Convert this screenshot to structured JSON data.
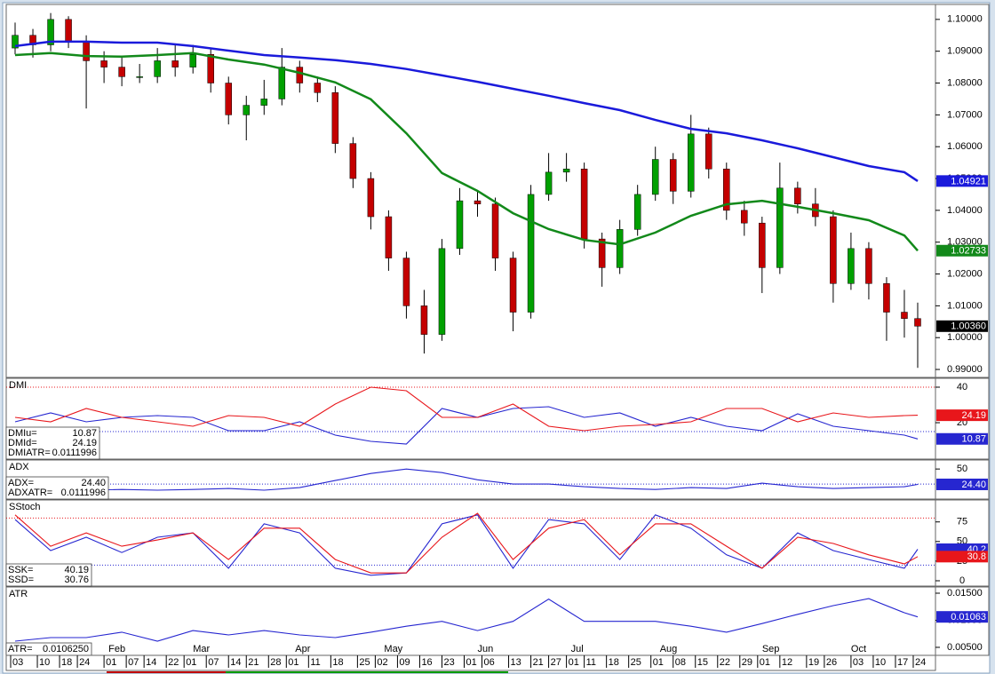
{
  "chart_data": [
    {
      "type": "candlestick",
      "xlim": [
        -2,
        207
      ],
      "ylim": [
        0.9875,
        1.1047
      ],
      "yticks": [
        {
          "value": 0.99,
          "label": "0.99000"
        },
        {
          "value": 1.0,
          "label": "1.00000"
        },
        {
          "value": 1.01,
          "label": "1.01000"
        },
        {
          "value": 1.02,
          "label": "1.02000"
        },
        {
          "value": 1.03,
          "label": "1.03000"
        },
        {
          "value": 1.04,
          "label": "1.04000"
        },
        {
          "value": 1.05,
          "label": "1.05000"
        },
        {
          "value": 1.06,
          "label": "1.06000"
        },
        {
          "value": 1.07,
          "label": "1.07000"
        },
        {
          "value": 1.08,
          "label": "1.08000"
        },
        {
          "value": 1.09,
          "label": "1.09000"
        },
        {
          "value": 1.1,
          "label": "1.10000"
        }
      ],
      "candles": {
        "up_color": "#00a000",
        "down_color": "#c40000",
        "x": [
          0,
          4,
          8,
          12,
          16,
          20,
          24,
          28,
          32,
          36,
          40,
          44,
          48,
          52,
          56,
          60,
          64,
          68,
          72,
          76,
          80,
          84,
          88,
          92,
          96,
          100,
          104,
          108,
          112,
          116,
          120,
          124,
          128,
          132,
          136,
          140,
          144,
          148,
          152,
          156,
          160,
          164,
          168,
          172,
          176,
          180,
          184,
          188,
          192,
          196,
          200,
          203
        ],
        "open": [
          1.091,
          1.095,
          1.092,
          1.1,
          1.093,
          1.087,
          1.085,
          1.082,
          1.082,
          1.087,
          1.085,
          1.089,
          1.08,
          1.07,
          1.073,
          1.075,
          1.085,
          1.08,
          1.077,
          1.061,
          1.05,
          1.038,
          1.025,
          1.01,
          1.001,
          1.028,
          1.043,
          1.042,
          1.025,
          1.008,
          1.045,
          1.052,
          1.053,
          1.031,
          1.022,
          1.034,
          1.045,
          1.056,
          1.046,
          1.064,
          1.053,
          1.04,
          1.036,
          1.022,
          1.047,
          1.042,
          1.038,
          1.017,
          1.028,
          1.017,
          1.008,
          1.006
        ],
        "high": [
          1.099,
          1.097,
          1.102,
          1.101,
          1.095,
          1.09,
          1.088,
          1.086,
          1.091,
          1.092,
          1.092,
          1.091,
          1.082,
          1.076,
          1.081,
          1.091,
          1.087,
          1.082,
          1.079,
          1.063,
          1.052,
          1.04,
          1.027,
          1.015,
          1.031,
          1.047,
          1.046,
          1.044,
          1.027,
          1.048,
          1.058,
          1.058,
          1.055,
          1.033,
          1.037,
          1.048,
          1.06,
          1.058,
          1.07,
          1.066,
          1.055,
          1.043,
          1.038,
          1.055,
          1.049,
          1.047,
          1.04,
          1.033,
          1.03,
          1.019,
          1.015,
          1.011
        ],
        "low": [
          1.089,
          1.088,
          1.09,
          1.091,
          1.072,
          1.08,
          1.079,
          1.08,
          1.08,
          1.082,
          1.083,
          1.077,
          1.067,
          1.062,
          1.07,
          1.073,
          1.077,
          1.074,
          1.058,
          1.047,
          1.034,
          1.021,
          1.006,
          0.995,
          0.999,
          1.026,
          1.038,
          1.021,
          1.002,
          1.006,
          1.043,
          1.049,
          1.028,
          1.016,
          1.02,
          1.032,
          1.043,
          1.042,
          1.044,
          1.05,
          1.037,
          1.032,
          1.014,
          1.02,
          1.039,
          1.035,
          1.011,
          1.015,
          1.012,
          0.999,
          1.0,
          0.9905
        ],
        "close": [
          1.095,
          1.092,
          1.1,
          1.093,
          1.087,
          1.085,
          1.082,
          1.082,
          1.087,
          1.085,
          1.089,
          1.08,
          1.07,
          1.073,
          1.075,
          1.085,
          1.08,
          1.077,
          1.061,
          1.05,
          1.038,
          1.025,
          1.01,
          1.001,
          1.028,
          1.043,
          1.042,
          1.025,
          1.008,
          1.045,
          1.052,
          1.053,
          1.031,
          1.022,
          1.034,
          1.045,
          1.056,
          1.046,
          1.064,
          1.053,
          1.04,
          1.036,
          1.022,
          1.047,
          1.042,
          1.038,
          1.017,
          1.028,
          1.017,
          1.008,
          1.006,
          1.0036
        ],
        "last_label": "1.00360",
        "last_color": "#000000"
      },
      "series": [
        {
          "color": "#1a1adb",
          "last_label": "1.04921",
          "x": [
            0,
            8,
            16,
            24,
            32,
            40,
            48,
            56,
            64,
            72,
            80,
            88,
            96,
            104,
            112,
            120,
            128,
            136,
            144,
            152,
            160,
            168,
            176,
            184,
            192,
            200,
            203
          ],
          "values": [
            1.0916,
            1.093,
            1.093,
            1.0927,
            1.0927,
            1.0916,
            1.0902,
            1.0888,
            1.088,
            1.0872,
            1.086,
            1.0844,
            1.0824,
            1.0804,
            1.0782,
            1.076,
            1.0737,
            1.0715,
            1.0684,
            1.0656,
            1.0642,
            1.062,
            1.0595,
            1.0567,
            1.0539,
            1.052,
            1.04921
          ]
        },
        {
          "color": "#12891a",
          "last_label": "1.02733",
          "x": [
            0,
            8,
            16,
            24,
            32,
            40,
            48,
            56,
            64,
            72,
            80,
            88,
            96,
            104,
            112,
            120,
            128,
            136,
            144,
            152,
            160,
            168,
            176,
            184,
            192,
            200,
            203
          ],
          "values": [
            1.0888,
            1.0894,
            1.0885,
            1.0883,
            1.0888,
            1.0894,
            1.0874,
            1.0858,
            1.0832,
            1.0802,
            1.0749,
            1.0642,
            1.0517,
            1.0461,
            1.0391,
            1.0341,
            1.0307,
            1.0293,
            1.033,
            1.0383,
            1.0419,
            1.043,
            1.0411,
            1.0391,
            1.0369,
            1.0321,
            1.02733
          ]
        }
      ]
    },
    {
      "type": "line",
      "title": "DMI",
      "xlim": [
        -2,
        207
      ],
      "ylim": [
        -0.5,
        45
      ],
      "yticks": [
        20,
        40
      ],
      "ref_lines": [
        {
          "value": 40,
          "color": "#e8161b"
        },
        {
          "value": 15,
          "color": "#2626d0"
        }
      ],
      "series": [
        {
          "name": "DMIu=",
          "color": "#2626d0",
          "x": [
            0,
            8,
            16,
            24,
            32,
            40,
            48,
            56,
            64,
            72,
            80,
            88,
            96,
            104,
            112,
            120,
            128,
            136,
            144,
            152,
            160,
            168,
            176,
            184,
            192,
            200,
            203
          ],
          "values": [
            20.5,
            25.5,
            20.5,
            23,
            24,
            23,
            15.5,
            15.5,
            20.5,
            13,
            9.5,
            8,
            28,
            23,
            28,
            29,
            23,
            25.5,
            18,
            23,
            18,
            15.5,
            25,
            18,
            15.5,
            13,
            10.87
          ]
        },
        {
          "name": "DMId=",
          "color": "#e8161b",
          "x": [
            0,
            8,
            16,
            24,
            32,
            40,
            48,
            56,
            64,
            72,
            80,
            88,
            96,
            104,
            112,
            120,
            128,
            136,
            144,
            152,
            160,
            168,
            176,
            184,
            192,
            200,
            203
          ],
          "values": [
            23,
            20.5,
            28,
            23,
            20.5,
            18,
            24,
            23,
            18,
            30.5,
            40,
            38,
            23,
            23,
            30.5,
            18,
            15.5,
            18,
            19,
            20.5,
            28,
            28,
            20.5,
            25.5,
            23,
            24,
            24.19
          ]
        }
      ],
      "stats": [
        {
          "label": "DMIATR=",
          "value": 0.0111996
        }
      ]
    },
    {
      "type": "line",
      "title": "ADX",
      "xlim": [
        -2,
        207
      ],
      "ylim": [
        0,
        65
      ],
      "yticks": [
        50
      ],
      "ref_lines": [
        {
          "value": 25,
          "color": "#2626d0"
        }
      ],
      "series": [
        {
          "name": "ADX=",
          "color": "#2626d0",
          "legend_label": "24.40",
          "last_label": "24.40",
          "x": [
            0,
            8,
            16,
            24,
            32,
            40,
            48,
            56,
            64,
            72,
            80,
            88,
            96,
            104,
            112,
            120,
            128,
            136,
            144,
            152,
            160,
            168,
            176,
            184,
            192,
            200,
            203
          ],
          "values": [
            20.6,
            17.6,
            14.7,
            16,
            14.7,
            16,
            17.6,
            14.7,
            19,
            30.9,
            42.6,
            50,
            44,
            32,
            25,
            25,
            20.6,
            17.6,
            16,
            19,
            17.6,
            26.5,
            20.6,
            17.6,
            19,
            20.6,
            24.4
          ]
        }
      ],
      "stats": [
        {
          "label": "ADXATR=",
          "value": 0.0111996
        }
      ]
    },
    {
      "type": "line",
      "title": "SStoch",
      "xlim": [
        -2,
        207
      ],
      "ylim": [
        -6.8,
        103
      ],
      "yticks": [
        0,
        25,
        50,
        75
      ],
      "ref_lines": [
        {
          "value": 80,
          "color": "#e8161b"
        },
        {
          "value": 20,
          "color": "#2626d0"
        }
      ],
      "series": [
        {
          "name": "SSK=",
          "color": "#2626d0",
          "last_label": "40.2",
          "x": [
            0,
            8,
            16,
            24,
            32,
            40,
            48,
            56,
            64,
            72,
            80,
            88,
            96,
            104,
            112,
            120,
            128,
            136,
            144,
            152,
            160,
            168,
            176,
            184,
            192,
            200,
            203
          ],
          "values": [
            78,
            38.5,
            55.5,
            36,
            55.5,
            61,
            16,
            72.5,
            61,
            16,
            7,
            10,
            72.5,
            84,
            16,
            78,
            72.5,
            27,
            84,
            67,
            33,
            16,
            61,
            38.5,
            27,
            16,
            40.19
          ]
        },
        {
          "name": "SSD=",
          "color": "#e8161b",
          "last_label": "30.8",
          "x": [
            0,
            8,
            16,
            24,
            32,
            40,
            48,
            56,
            64,
            72,
            80,
            88,
            96,
            104,
            112,
            120,
            128,
            136,
            144,
            152,
            160,
            168,
            176,
            184,
            192,
            200,
            203
          ],
          "values": [
            84,
            44,
            61,
            44,
            52,
            61,
            27,
            67,
            67,
            27,
            10,
            10,
            55.5,
            86,
            27,
            67,
            78,
            33,
            72.5,
            72.5,
            44,
            16,
            55.5,
            47.5,
            33,
            21.5,
            30.76
          ]
        }
      ]
    },
    {
      "type": "line",
      "title": "ATR",
      "xlim": [
        -2,
        207
      ],
      "ylim": [
        0.00352,
        0.01615
      ],
      "yticks": [
        {
          "value": 0.005,
          "label": "0.00500"
        },
        {
          "value": 0.01,
          "label": "0.01000"
        },
        {
          "value": 0.015,
          "label": "0.01500"
        }
      ],
      "series": [
        {
          "name": "ATR=",
          "color": "#2626d0",
          "legend_label": "0.0106250",
          "last_label": "0.01063",
          "x": [
            0,
            8,
            16,
            24,
            32,
            40,
            48,
            56,
            64,
            72,
            80,
            88,
            96,
            104,
            112,
            120,
            128,
            136,
            144,
            152,
            160,
            168,
            176,
            184,
            192,
            200,
            203
          ],
          "values": [
            0.00615,
            0.0068,
            0.0068,
            0.0078,
            0.00615,
            0.0081,
            0.0073,
            0.0081,
            0.0073,
            0.0068,
            0.0078,
            0.0089,
            0.0098,
            0.0081,
            0.0098,
            0.0139,
            0.0098,
            0.0098,
            0.0098,
            0.0089,
            0.0078,
            0.0094,
            0.0111,
            0.0127,
            0.014,
            0.0114,
            0.010625
          ]
        }
      ],
      "xticks": [
        {
          "value": -1,
          "label": "03"
        },
        {
          "value": 5,
          "label": "10"
        },
        {
          "value": 10,
          "label": "18"
        },
        {
          "value": 14,
          "label": "24"
        },
        {
          "value": 20,
          "label": "01"
        },
        {
          "value": 25,
          "label": "07"
        },
        {
          "value": 29,
          "label": "14"
        },
        {
          "value": 34,
          "label": "22"
        },
        {
          "value": 38,
          "label": "01"
        },
        {
          "value": 43,
          "label": "07"
        },
        {
          "value": 48,
          "label": "14"
        },
        {
          "value": 52,
          "label": "21"
        },
        {
          "value": 57,
          "label": "28"
        },
        {
          "value": 61,
          "label": "01"
        },
        {
          "value": 66,
          "label": "11"
        },
        {
          "value": 71,
          "label": "18"
        },
        {
          "value": 77,
          "label": "25"
        },
        {
          "value": 81,
          "label": "02"
        },
        {
          "value": 86,
          "label": "09"
        },
        {
          "value": 91,
          "label": "16"
        },
        {
          "value": 96,
          "label": "23"
        },
        {
          "value": 101,
          "label": "01"
        },
        {
          "value": 105,
          "label": "06"
        },
        {
          "value": 111,
          "label": "13"
        },
        {
          "value": 116,
          "label": "21"
        },
        {
          "value": 120,
          "label": "27"
        },
        {
          "value": 124,
          "label": "01"
        },
        {
          "value": 128,
          "label": "11"
        },
        {
          "value": 133,
          "label": "18"
        },
        {
          "value": 138,
          "label": "25"
        },
        {
          "value": 143,
          "label": "01"
        },
        {
          "value": 148,
          "label": "08"
        },
        {
          "value": 153,
          "label": "15"
        },
        {
          "value": 158,
          "label": "22"
        },
        {
          "value": 163,
          "label": "29"
        },
        {
          "value": 167,
          "label": "01"
        },
        {
          "value": 172,
          "label": "12"
        },
        {
          "value": 178,
          "label": "19"
        },
        {
          "value": 182,
          "label": "26"
        },
        {
          "value": 188,
          "label": "03"
        },
        {
          "value": 193,
          "label": "10"
        },
        {
          "value": 198,
          "label": "17"
        },
        {
          "value": 202,
          "label": "24"
        }
      ],
      "month_labels": [
        {
          "value": 21,
          "label": "Feb"
        },
        {
          "value": 40,
          "label": "Mar"
        },
        {
          "value": 63,
          "label": "Apr"
        },
        {
          "value": 83,
          "label": "May"
        },
        {
          "value": 104,
          "label": "Jun"
        },
        {
          "value": 125,
          "label": "Jul"
        },
        {
          "value": 145,
          "label": "Aug"
        },
        {
          "value": 168,
          "label": "Sep"
        },
        {
          "value": 188,
          "label": "Oct"
        }
      ]
    }
  ]
}
